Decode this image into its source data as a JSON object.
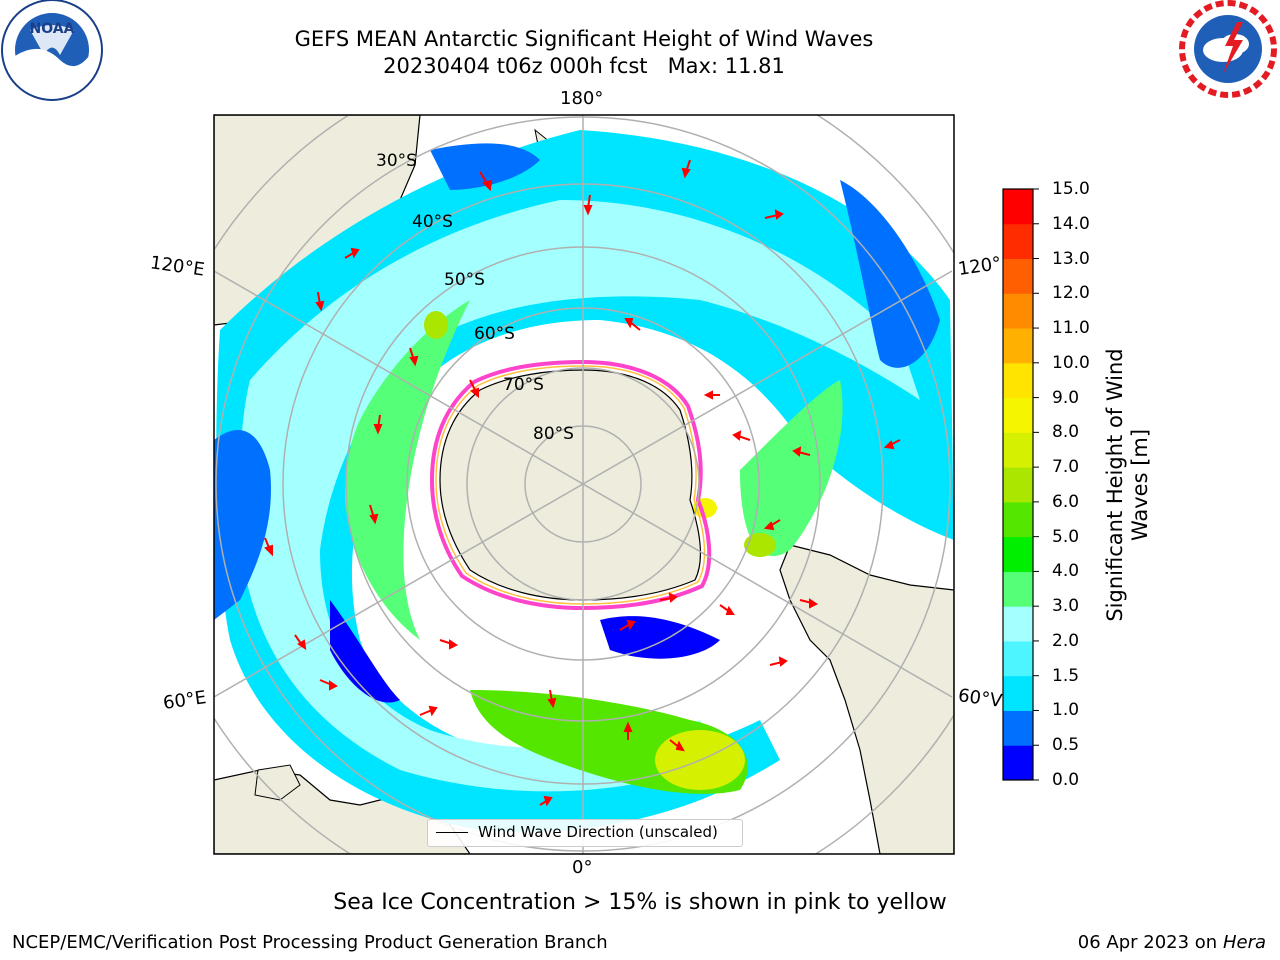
{
  "title_line1": "GEFS MEAN Antarctic Significant Height of Wind Waves",
  "title_line2": "20230404 t06z 000h fcst   Max: 11.81",
  "longitude_labels": {
    "top": "180°",
    "bottom": "0°",
    "upper_left": "120°E",
    "upper_right": "120°",
    "lower_left": "60°E",
    "lower_right": "60°V"
  },
  "latitude_labels": [
    "30°S",
    "40°S",
    "50°S",
    "60°S",
    "70°S",
    "80°S"
  ],
  "legend": {
    "label": "Wind Wave Direction (unscaled)"
  },
  "colorbar": {
    "title_line1": "Significant Height of Wind",
    "title_line2": "Waves [m]",
    "ticks": [
      "0.0",
      "0.5",
      "1.0",
      "1.5",
      "2.0",
      "3.0",
      "4.0",
      "5.0",
      "6.0",
      "7.0",
      "8.0",
      "9.0",
      "10.0",
      "11.0",
      "12.0",
      "13.0",
      "14.0",
      "15.0"
    ],
    "colors": [
      "#0000ff",
      "#0070ff",
      "#00e5ff",
      "#4cf5ff",
      "#a4ffff",
      "#55ff77",
      "#00ef00",
      "#55e600",
      "#aae600",
      "#d5f000",
      "#f5f500",
      "#ffe400",
      "#ffb000",
      "#ff8c00",
      "#ff5f00",
      "#ff2c00",
      "#ff0000"
    ]
  },
  "sea_ice_note": "Sea Ice Concentration > 15% is shown in pink to yellow",
  "footer_left": "NCEP/EMC/Verification Post Processing Product Generation Branch",
  "footer_right_date": "06 Apr 2023 on ",
  "footer_right_host": "Hera",
  "logos": {
    "left": "NOAA",
    "right": "NATIONAL WEATHER SERVICE"
  }
}
